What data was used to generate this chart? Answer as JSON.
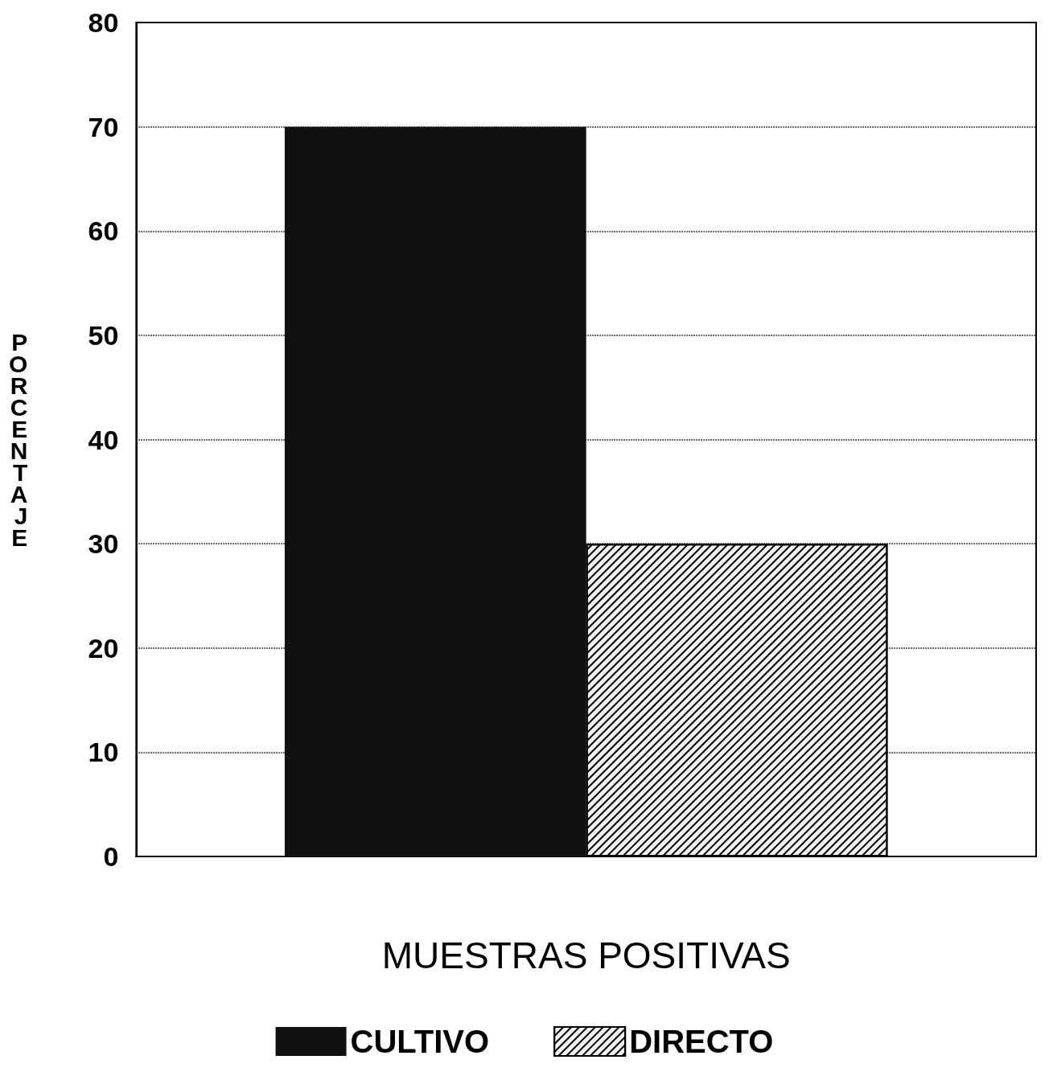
{
  "chart_data": {
    "type": "bar",
    "xlabel": "MUESTRAS POSITIVAS",
    "ylabel": "PORCENTAJE",
    "categories": [
      null
    ],
    "series": [
      {
        "name": "CULTIVO",
        "color": "#111111",
        "values": [
          70
        ]
      },
      {
        "name": "DIRECTO",
        "color": "#f2f2f2",
        "values": [
          30
        ]
      }
    ],
    "ylim": [
      0,
      80
    ],
    "yticks": [
      0,
      10,
      20,
      30,
      40,
      50,
      60,
      70,
      80
    ],
    "grid": "y",
    "legend": "bottom"
  }
}
